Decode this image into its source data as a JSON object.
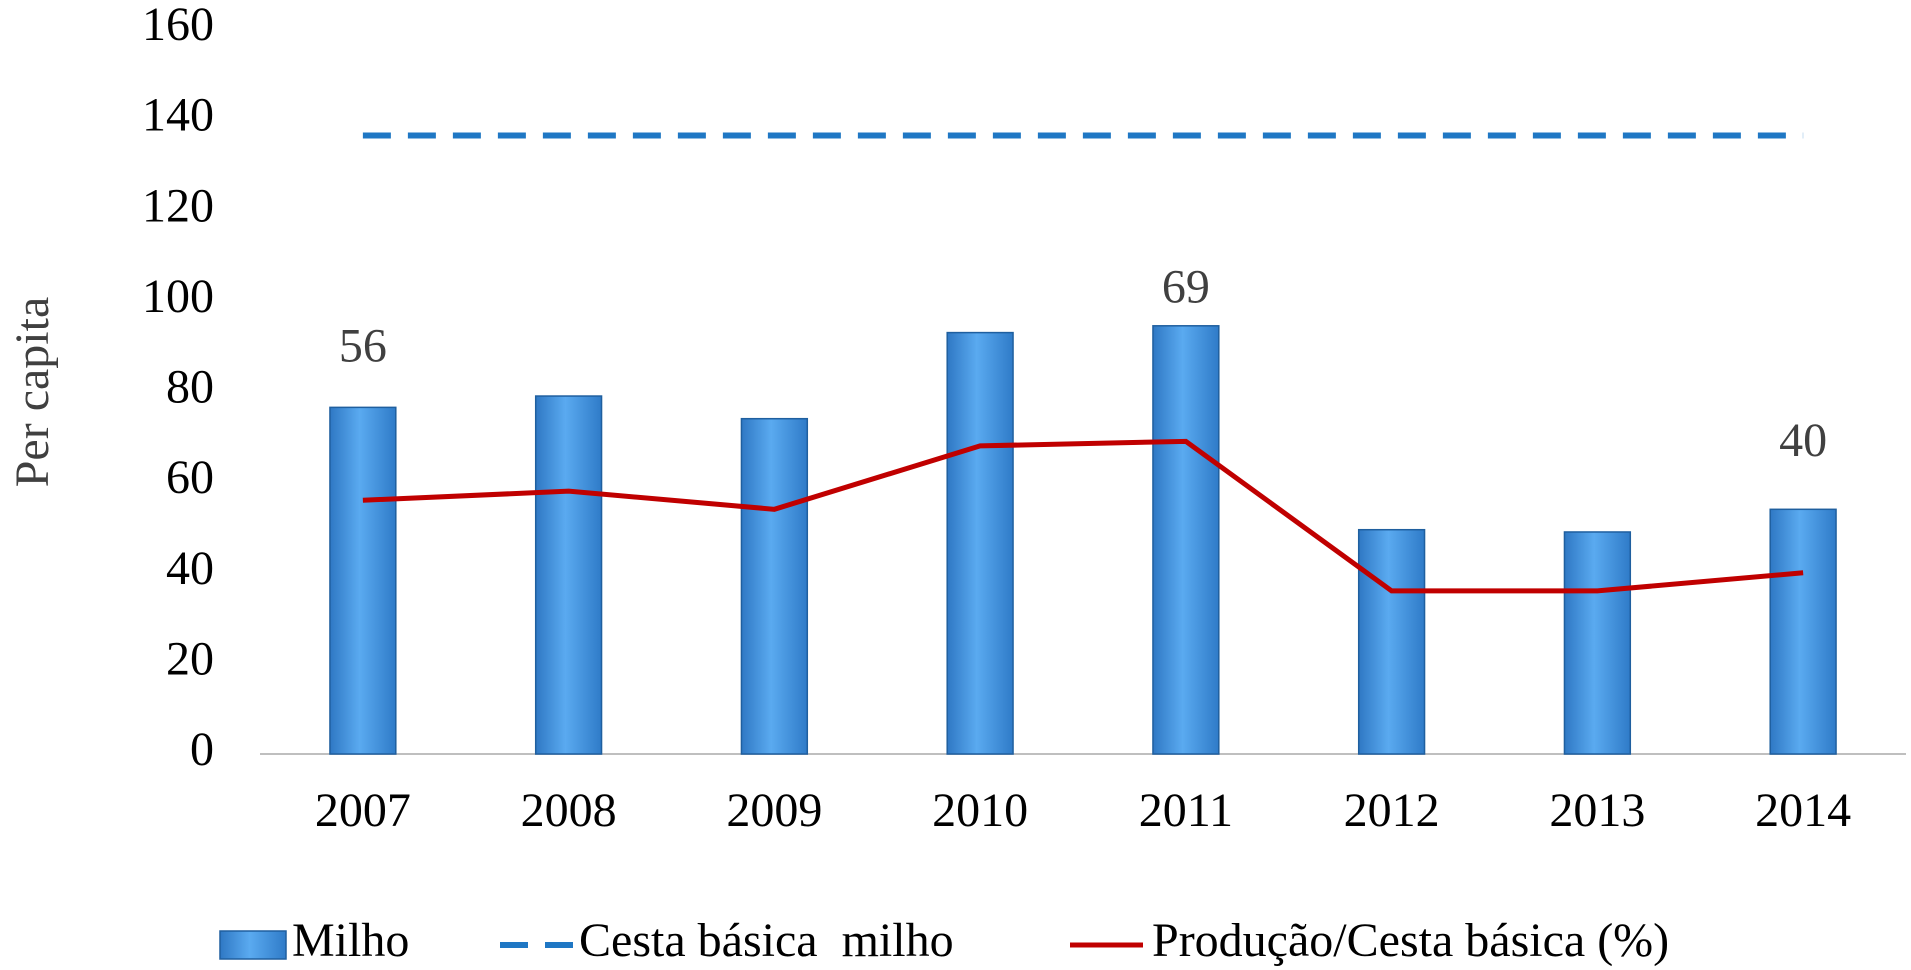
{
  "chart_data": {
    "type": "bar",
    "categories": [
      "2007",
      "2008",
      "2009",
      "2010",
      "2011",
      "2012",
      "2013",
      "2014"
    ],
    "ylabel": "Per capita",
    "ylim": [
      0,
      160
    ],
    "yticks": [
      0,
      20,
      40,
      60,
      80,
      100,
      120,
      140,
      160
    ],
    "series": [
      {
        "name": "Milho",
        "type": "bar",
        "color": "#3d8fd8",
        "values": [
          76.5,
          79,
          74,
          93,
          94.5,
          49.5,
          49,
          54
        ]
      },
      {
        "name": "Cesta básica  milho",
        "type": "dashed-line",
        "color": "#1f77c4",
        "values": [
          136.5,
          136.5,
          136.5,
          136.5,
          136.5,
          136.5,
          136.5,
          136.5
        ]
      },
      {
        "name": "Produção/Cesta básica (%)",
        "type": "line",
        "color": "#c00000",
        "values": [
          56,
          58,
          54,
          68,
          69,
          36,
          36,
          40
        ],
        "value_labels": [
          56,
          null,
          null,
          null,
          69,
          null,
          null,
          40
        ]
      }
    ]
  }
}
